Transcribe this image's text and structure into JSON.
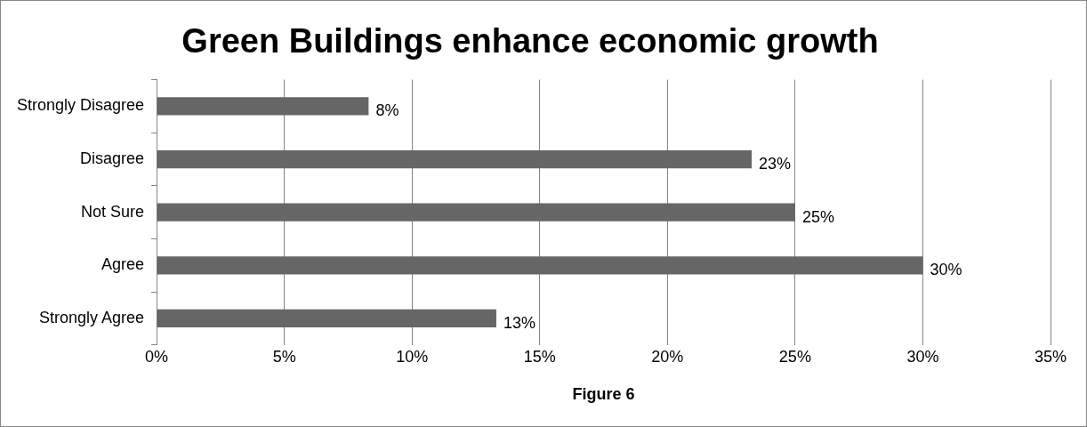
{
  "chart_data": {
    "type": "bar",
    "orientation": "horizontal",
    "title": "Green Buildings enhance economic growth",
    "xlabel": "Figure 6",
    "categories": [
      "Strongly Disagree",
      "Disagree",
      "Not Sure",
      "Agree",
      "Strongly Agree"
    ],
    "values": [
      8.3,
      23.3,
      25,
      30,
      13.3
    ],
    "value_labels": [
      "8%",
      "23%",
      "25%",
      "30%",
      "13%"
    ],
    "color": "#666666",
    "xlim": [
      0,
      35
    ],
    "xticks": [
      {
        "value": 0,
        "label": "0%"
      },
      {
        "value": 5,
        "label": "5%"
      },
      {
        "value": 10,
        "label": "10%"
      },
      {
        "value": 15,
        "label": "15%"
      },
      {
        "value": 20,
        "label": "20%"
      },
      {
        "value": 25,
        "label": "25%"
      },
      {
        "value": 30,
        "label": "30%"
      },
      {
        "value": 35,
        "label": "35%"
      }
    ],
    "grid": "x",
    "legend": false
  }
}
